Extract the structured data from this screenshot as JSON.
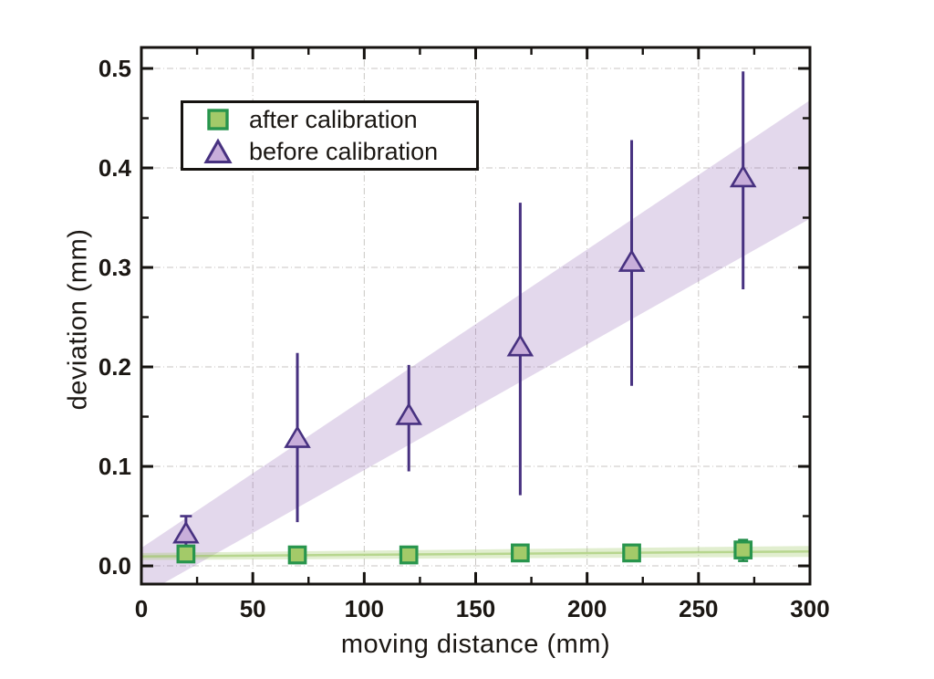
{
  "figure": {
    "background": "#ffffff",
    "text_color": "#1b1713",
    "axis_color": "#161310",
    "grid_color": "#c9c6c3"
  },
  "chart_data": {
    "type": "scatter",
    "title": "",
    "xlabel": "moving distance (mm)",
    "ylabel": "deviation (mm)",
    "xlim": [
      0,
      300
    ],
    "ylim": [
      -0.0183,
      0.5211
    ],
    "grid": true,
    "legend_position": "upper-left",
    "x_major_ticks": [
      0,
      50,
      100,
      150,
      200,
      250,
      300
    ],
    "x_minor_ticks": [
      25,
      75,
      125,
      175,
      225,
      275
    ],
    "y_major_ticks": [
      0.0,
      0.1,
      0.2,
      0.3,
      0.4,
      0.5
    ],
    "y_minor_ticks": [
      0.05,
      0.15,
      0.25,
      0.35,
      0.45
    ],
    "series": [
      {
        "name": "after calibration",
        "marker": "square",
        "marker_fill": "#a3ca69",
        "marker_edge": "#28954d",
        "error_color": "#1f8a47",
        "x": [
          20,
          70,
          120,
          170,
          220,
          270
        ],
        "y": [
          0.012,
          0.011,
          0.011,
          0.013,
          0.013,
          0.016
        ],
        "y_err_low": [
          0.004,
          0.003,
          0.005,
          0.006,
          0.007,
          0.005
        ],
        "y_err_high": [
          0.019,
          0.019,
          0.018,
          0.02,
          0.019,
          0.026
        ],
        "error_caps": [
          true,
          true,
          true,
          true,
          true,
          true
        ],
        "band": {
          "x": [
            0,
            300
          ],
          "upper": [
            0.013,
            0.02
          ],
          "lower": [
            0.006,
            0.009
          ],
          "fill": "rgba(163,202,105,0.32)",
          "center_line_y": [
            0.0095,
            0.0145
          ],
          "center_line_color": "rgba(150,195,90,0.55)"
        }
      },
      {
        "name": "before calibration",
        "marker": "triangle",
        "marker_fill": "#c8aeda",
        "marker_edge": "#473180",
        "error_color": "#473180",
        "x": [
          20,
          70,
          120,
          170,
          220,
          270
        ],
        "y": [
          0.032,
          0.128,
          0.151,
          0.22,
          0.305,
          0.39
        ],
        "y_err_low": [
          0.012,
          0.044,
          0.095,
          0.071,
          0.181,
          0.278
        ],
        "y_err_high": [
          0.05,
          0.214,
          0.202,
          0.365,
          0.428,
          0.497
        ],
        "error_caps": [
          true,
          false,
          false,
          false,
          false,
          false
        ],
        "band": {
          "x": [
            0,
            300
          ],
          "upper": [
            0.018,
            0.468
          ],
          "lower": [
            -0.03,
            0.349
          ],
          "fill": "rgba(139,94,176,0.24)"
        }
      }
    ]
  },
  "legend": {
    "items": [
      {
        "label": "after calibration",
        "marker": "square"
      },
      {
        "label": "before calibration",
        "marker": "triangle"
      }
    ]
  }
}
